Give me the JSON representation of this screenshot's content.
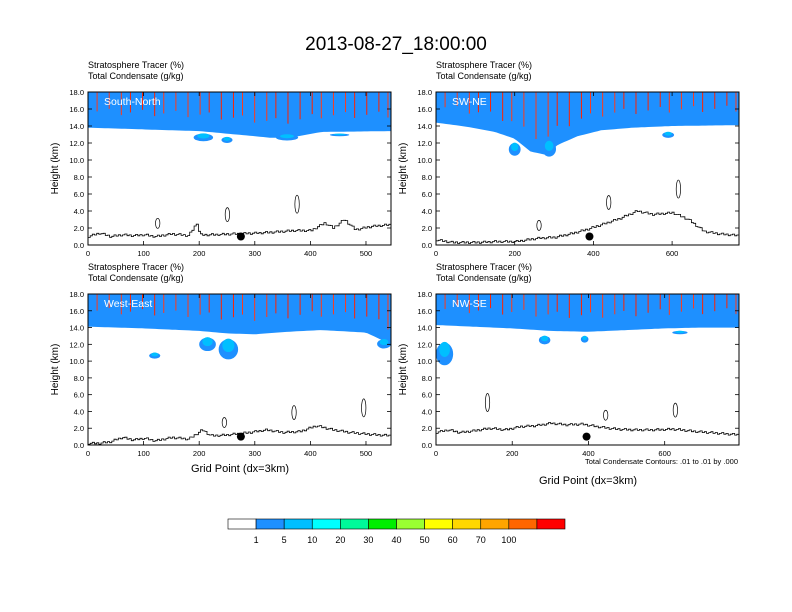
{
  "title": "2013-08-27_18:00:00",
  "panel_heading_line1": "Stratosphere Tracer   (%)",
  "panel_heading_line2": "Total Condensate   (g/kg)",
  "ylabel": "Height (km)",
  "xlabel": "Grid Point (dx=3km)",
  "contour_note": "Total Condensate Contours: .01 to .01 by .000",
  "colorbar": {
    "labels": [
      "1",
      "5",
      "10",
      "20",
      "30",
      "40",
      "50",
      "60",
      "70",
      "100"
    ],
    "colors": [
      "#ffffff",
      "#1e90ff",
      "#00bfff",
      "#00ffff",
      "#00fa9a",
      "#00ee00",
      "#9aff32",
      "#ffff00",
      "#ffd700",
      "#ffa500",
      "#ff6600",
      "#ff0000"
    ]
  },
  "chart_data": [
    {
      "type": "heatmap",
      "panel": "South-North",
      "title": "South-North",
      "xlim": [
        0,
        545
      ],
      "ylim": [
        0,
        18
      ],
      "xticks": [
        0,
        100,
        200,
        300,
        400,
        500
      ],
      "yticks": [
        0.0,
        2.0,
        4.0,
        6.0,
        8.0,
        10.0,
        12.0,
        14.0,
        16.0,
        18.0
      ],
      "tracer_base_km": [
        [
          0,
          13.8
        ],
        [
          100,
          13.6
        ],
        [
          200,
          13.4
        ],
        [
          250,
          13.1
        ],
        [
          300,
          12.8
        ],
        [
          330,
          12.6
        ],
        [
          370,
          12.7
        ],
        [
          420,
          13.3
        ],
        [
          545,
          13.4
        ]
      ],
      "blue_patches": [
        [
          190,
          225,
          12.2,
          13.1
        ],
        [
          240,
          260,
          12.0,
          12.7
        ],
        [
          338,
          378,
          12.3,
          13.0
        ],
        [
          435,
          470,
          12.8,
          13.1
        ]
      ],
      "terrain_km": [
        [
          0,
          1.0
        ],
        [
          20,
          1.4
        ],
        [
          40,
          1.0
        ],
        [
          60,
          1.2
        ],
        [
          80,
          1.1
        ],
        [
          100,
          1.2
        ],
        [
          120,
          1.0
        ],
        [
          150,
          1.3
        ],
        [
          180,
          1.1
        ],
        [
          195,
          2.6
        ],
        [
          200,
          1.2
        ],
        [
          220,
          1.2
        ],
        [
          260,
          1.3
        ],
        [
          300,
          1.4
        ],
        [
          330,
          1.5
        ],
        [
          370,
          1.7
        ],
        [
          400,
          1.7
        ],
        [
          425,
          2.6
        ],
        [
          440,
          2.0
        ],
        [
          460,
          3.0
        ],
        [
          480,
          1.8
        ],
        [
          510,
          2.2
        ],
        [
          545,
          2.4
        ]
      ],
      "marker": [
        275,
        1.0
      ]
    },
    {
      "type": "heatmap",
      "panel": "SW-NE",
      "title": "SW-NE",
      "xlim": [
        0,
        770
      ],
      "ylim": [
        0,
        18
      ],
      "xticks": [
        0,
        200,
        400,
        600
      ],
      "yticks": [
        0.0,
        2.0,
        4.0,
        6.0,
        8.0,
        10.0,
        12.0,
        14.0,
        16.0,
        18.0
      ],
      "tracer_base_km": [
        [
          0,
          14.4
        ],
        [
          80,
          13.9
        ],
        [
          150,
          13.3
        ],
        [
          200,
          12.5
        ],
        [
          240,
          11.0
        ],
        [
          280,
          10.6
        ],
        [
          310,
          11.8
        ],
        [
          360,
          12.8
        ],
        [
          420,
          13.5
        ],
        [
          500,
          13.8
        ],
        [
          600,
          14.0
        ],
        [
          770,
          14.1
        ]
      ],
      "blue_patches": [
        [
          185,
          215,
          10.5,
          12.0
        ],
        [
          270,
          305,
          10.4,
          12.2
        ],
        [
          575,
          605,
          12.6,
          13.3
        ]
      ],
      "terrain_km": [
        [
          0,
          0.6
        ],
        [
          40,
          0.3
        ],
        [
          100,
          0.3
        ],
        [
          150,
          0.4
        ],
        [
          200,
          0.4
        ],
        [
          260,
          0.8
        ],
        [
          300,
          0.9
        ],
        [
          340,
          1.3
        ],
        [
          380,
          1.8
        ],
        [
          420,
          2.4
        ],
        [
          470,
          3.2
        ],
        [
          510,
          4.0
        ],
        [
          550,
          3.6
        ],
        [
          600,
          3.8
        ],
        [
          640,
          3.0
        ],
        [
          680,
          1.6
        ],
        [
          720,
          1.3
        ],
        [
          770,
          1.1
        ]
      ],
      "marker": [
        390,
        1.0
      ]
    },
    {
      "type": "heatmap",
      "panel": "West-East",
      "title": "West-East",
      "xlim": [
        0,
        545
      ],
      "ylim": [
        0,
        18
      ],
      "xticks": [
        0,
        100,
        200,
        300,
        400,
        500
      ],
      "yticks": [
        0.0,
        2.0,
        4.0,
        6.0,
        8.0,
        10.0,
        12.0,
        14.0,
        16.0,
        18.0
      ],
      "tracer_base_km": [
        [
          0,
          14.1
        ],
        [
          100,
          13.9
        ],
        [
          200,
          13.6
        ],
        [
          250,
          13.3
        ],
        [
          300,
          13.2
        ],
        [
          360,
          13.5
        ],
        [
          420,
          13.7
        ],
        [
          500,
          13.4
        ],
        [
          545,
          12.0
        ]
      ],
      "blue_patches": [
        [
          110,
          130,
          10.3,
          11.0
        ],
        [
          200,
          230,
          11.2,
          12.8
        ],
        [
          235,
          270,
          10.2,
          12.6
        ],
        [
          520,
          545,
          11.5,
          12.6
        ]
      ],
      "terrain_km": [
        [
          0,
          0.2
        ],
        [
          20,
          0.2
        ],
        [
          40,
          0.4
        ],
        [
          60,
          0.9
        ],
        [
          80,
          0.6
        ],
        [
          100,
          0.8
        ],
        [
          120,
          0.5
        ],
        [
          150,
          0.9
        ],
        [
          180,
          0.7
        ],
        [
          205,
          1.8
        ],
        [
          220,
          1.1
        ],
        [
          250,
          1.2
        ],
        [
          290,
          1.5
        ],
        [
          320,
          1.8
        ],
        [
          350,
          1.5
        ],
        [
          380,
          1.6
        ],
        [
          410,
          2.3
        ],
        [
          440,
          1.8
        ],
        [
          470,
          1.5
        ],
        [
          500,
          1.3
        ],
        [
          545,
          1.1
        ]
      ],
      "marker": [
        275,
        1.0
      ]
    },
    {
      "type": "heatmap",
      "panel": "NW-SE",
      "title": "NW-SE",
      "xlim": [
        0,
        795
      ],
      "ylim": [
        0,
        18
      ],
      "xticks": [
        0,
        200,
        400,
        600
      ],
      "yticks": [
        0.0,
        2.0,
        4.0,
        6.0,
        8.0,
        10.0,
        12.0,
        14.0,
        16.0,
        18.0
      ],
      "tracer_base_km": [
        [
          0,
          14.3
        ],
        [
          100,
          14.1
        ],
        [
          200,
          13.9
        ],
        [
          300,
          13.6
        ],
        [
          400,
          13.5
        ],
        [
          500,
          13.7
        ],
        [
          600,
          13.9
        ],
        [
          700,
          14.0
        ],
        [
          795,
          14.0
        ]
      ],
      "blue_patches": [
        [
          0,
          45,
          9.5,
          12.2
        ],
        [
          270,
          300,
          12.0,
          13.0
        ],
        [
          380,
          400,
          12.2,
          13.0
        ],
        [
          620,
          660,
          13.2,
          13.6
        ]
      ],
      "terrain_km": [
        [
          0,
          1.5
        ],
        [
          30,
          1.8
        ],
        [
          60,
          1.5
        ],
        [
          100,
          1.7
        ],
        [
          140,
          2.0
        ],
        [
          180,
          1.8
        ],
        [
          220,
          2.2
        ],
        [
          260,
          2.3
        ],
        [
          300,
          2.6
        ],
        [
          340,
          2.4
        ],
        [
          380,
          2.5
        ],
        [
          420,
          2.2
        ],
        [
          470,
          1.9
        ],
        [
          520,
          1.8
        ],
        [
          570,
          1.8
        ],
        [
          620,
          1.9
        ],
        [
          680,
          1.6
        ],
        [
          740,
          1.4
        ],
        [
          795,
          1.2
        ]
      ],
      "marker": [
        395,
        1.0
      ]
    }
  ]
}
